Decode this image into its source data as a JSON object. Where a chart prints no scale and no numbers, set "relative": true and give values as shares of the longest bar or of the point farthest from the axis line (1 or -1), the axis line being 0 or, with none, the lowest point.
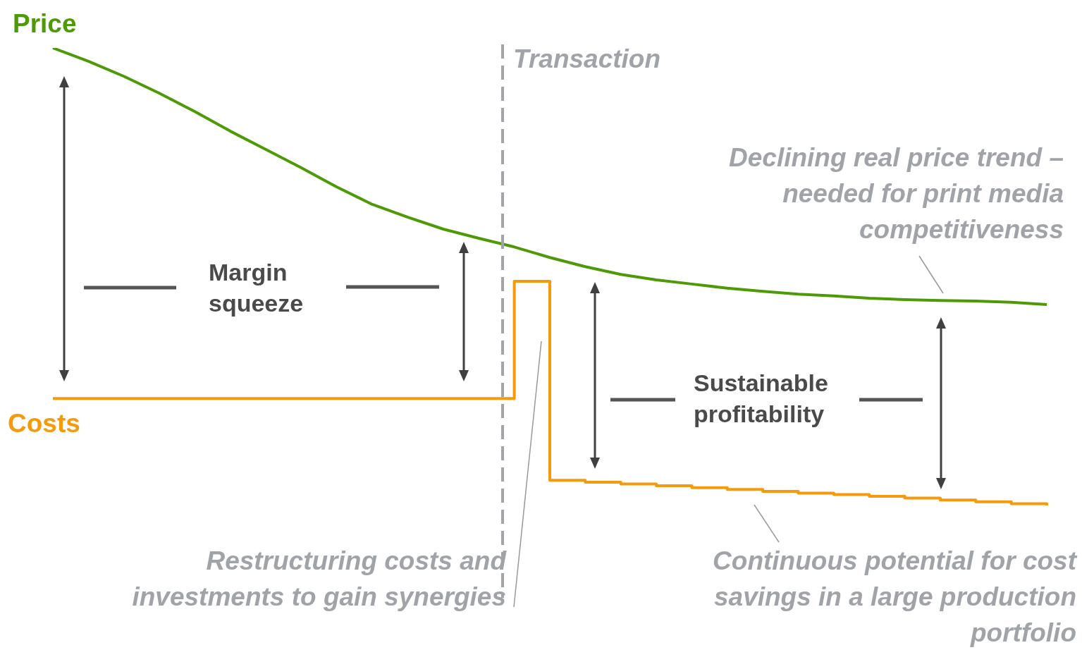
{
  "chart_data": {
    "type": "line",
    "relative": true,
    "marker": "none",
    "categories": [
      null,
      null,
      null,
      null,
      null,
      null,
      null,
      null,
      null,
      null,
      null,
      null,
      null,
      null,
      null,
      null,
      null,
      null,
      null,
      null,
      null,
      null,
      null,
      null,
      null,
      null,
      null,
      null,
      null
    ],
    "series": [
      {
        "name": "Price",
        "color": "#4e9a06",
        "values": [
          1.0,
          0.971,
          0.938,
          0.901,
          0.861,
          0.818,
          0.778,
          0.738,
          0.696,
          0.658,
          0.63,
          0.604,
          0.584,
          0.565,
          0.542,
          0.522,
          0.505,
          0.493,
          0.484,
          0.475,
          0.468,
          0.462,
          0.458,
          0.453,
          0.45,
          0.448,
          0.447,
          0.444,
          0.439
        ]
      },
      {
        "name": "Costs",
        "type": "step",
        "color": "#f59a0c",
        "values": [
          0.234,
          0.234,
          0.234,
          0.234,
          0.234,
          0.234,
          0.234,
          0.234,
          0.234,
          0.234,
          0.234,
          0.234,
          0.234,
          0.49,
          0.055,
          0.051,
          0.047,
          0.043,
          0.039,
          0.035,
          0.031,
          0.027,
          0.024,
          0.02,
          0.016,
          0.012,
          0.008,
          0.004,
          0
        ]
      }
    ],
    "annotations": [
      "Transaction",
      "Margin squeeze",
      "Sustainable profitability",
      "Declining real price trend – needed for print media competitiveness",
      "Restructuring costs and investments to gain synergies",
      "Continuous potential for cost savings in a large production portfolio"
    ]
  }
}
